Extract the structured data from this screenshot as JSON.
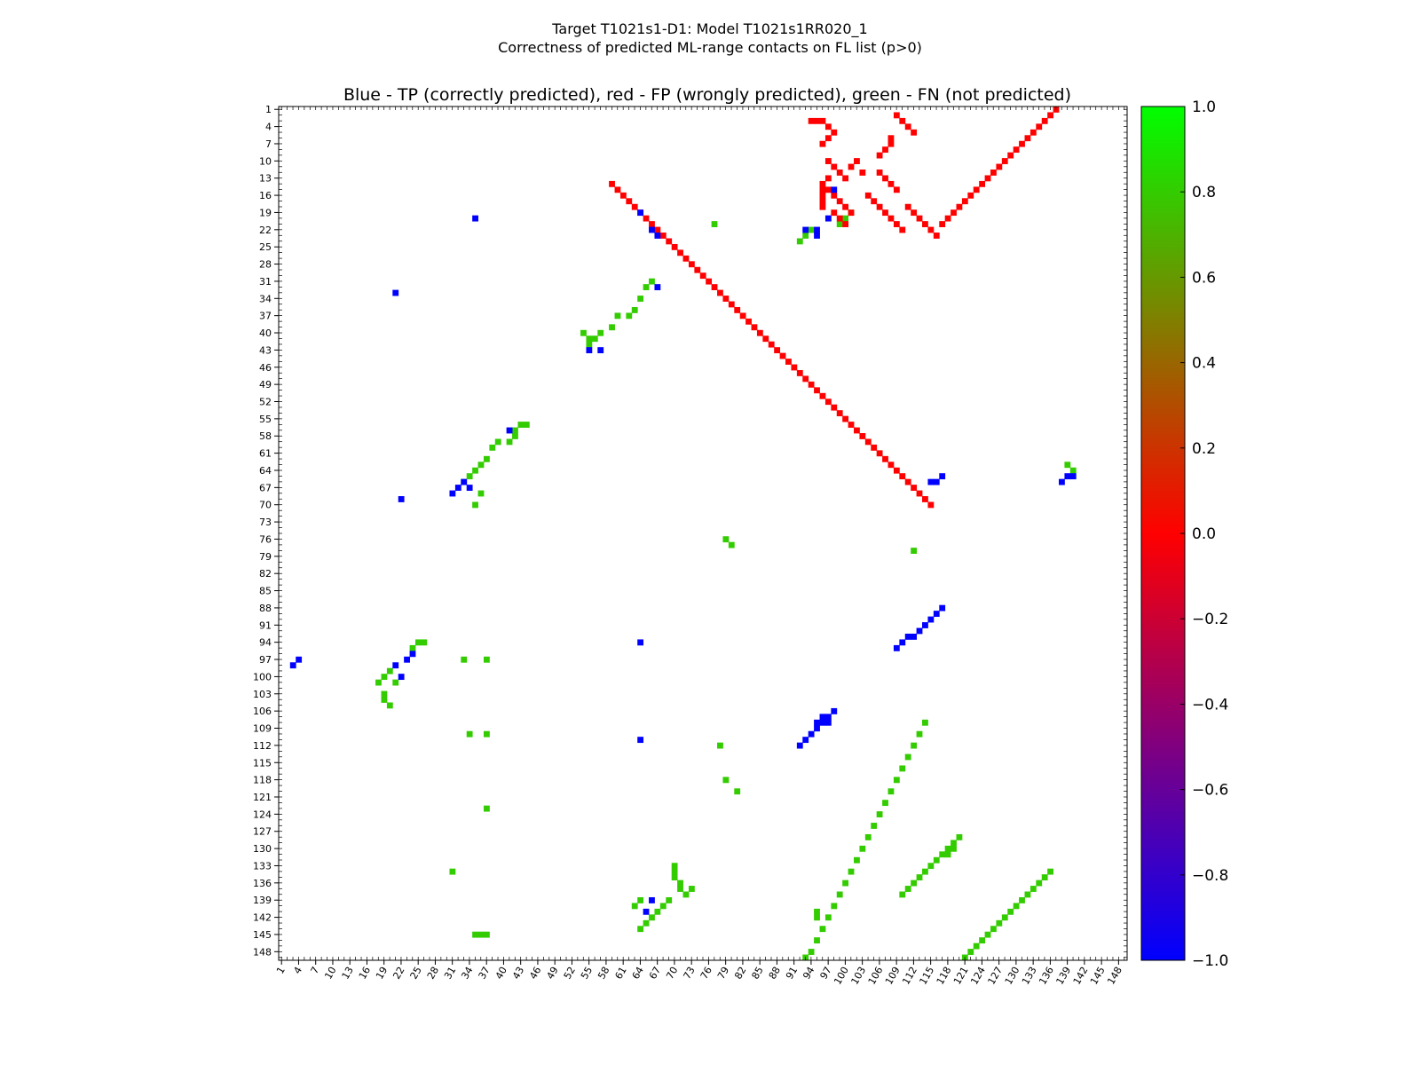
{
  "chart_data": {
    "type": "heatmap",
    "title": "Target T1021s1-D1: Model T1021s1RR020_1",
    "subtitle": "Correctness of predicted ML-range contacts on FL list (p>0)",
    "plot_title": "Blue - TP (correctly predicted), red - FP (wrongly predicted), green - FN (not predicted)",
    "xlabel": "",
    "ylabel": "",
    "residue_range": [
      1,
      149
    ],
    "ticks": [
      "1",
      "4",
      "7",
      "10",
      "13",
      "16",
      "19",
      "22",
      "25",
      "28",
      "31",
      "34",
      "37",
      "40",
      "43",
      "46",
      "49",
      "52",
      "55",
      "58",
      "61",
      "64",
      "67",
      "70",
      "73",
      "76",
      "79",
      "82",
      "85",
      "88",
      "91",
      "94",
      "97",
      "100",
      "103",
      "106",
      "109",
      "112",
      "115",
      "118",
      "121",
      "124",
      "127",
      "130",
      "133",
      "136",
      "139",
      "142",
      "145",
      "148"
    ],
    "grid": false,
    "colorbar": {
      "range": [
        -1.0,
        1.0
      ],
      "ticks": [
        "1.0",
        "0.8",
        "0.6",
        "0.4",
        "0.2",
        "0.0",
        "−0.2",
        "−0.4",
        "−0.6",
        "−0.8",
        "−1.0"
      ],
      "colors": [
        "#0000ff",
        "#ff0000",
        "#00ff00"
      ]
    },
    "colors": {
      "TP": "#0000ff",
      "FP": "#ff0000",
      "FN": "#33cc00"
    },
    "cells": {
      "TP": [
        [
          3,
          98
        ],
        [
          4,
          97
        ],
        [
          21,
          33
        ],
        [
          21,
          98
        ],
        [
          22,
          100
        ],
        [
          23,
          97
        ],
        [
          24,
          96
        ],
        [
          35,
          20
        ],
        [
          41,
          57
        ],
        [
          55,
          43
        ],
        [
          57,
          43
        ],
        [
          64,
          19
        ],
        [
          64,
          94
        ],
        [
          64,
          111
        ],
        [
          65,
          141
        ],
        [
          66,
          22
        ],
        [
          66,
          139
        ],
        [
          67,
          32
        ],
        [
          67,
          23
        ],
        [
          98,
          15
        ],
        [
          97,
          20
        ],
        [
          95,
          22
        ],
        [
          93,
          22
        ],
        [
          95,
          23
        ],
        [
          115,
          66
        ],
        [
          116,
          66
        ],
        [
          117,
          65
        ],
        [
          138,
          66
        ],
        [
          139,
          65
        ],
        [
          140,
          65
        ],
        [
          33,
          66
        ],
        [
          32,
          67
        ],
        [
          31,
          68
        ],
        [
          34,
          67
        ],
        [
          22,
          69
        ],
        [
          92,
          112
        ],
        [
          93,
          111
        ],
        [
          94,
          110
        ],
        [
          95,
          109
        ],
        [
          96,
          108
        ],
        [
          97,
          107
        ],
        [
          98,
          106
        ],
        [
          95,
          108
        ],
        [
          96,
          107
        ],
        [
          97,
          108
        ],
        [
          109,
          95
        ],
        [
          110,
          94
        ],
        [
          111,
          93
        ],
        [
          112,
          93
        ],
        [
          113,
          92
        ],
        [
          114,
          91
        ],
        [
          115,
          90
        ],
        [
          116,
          89
        ],
        [
          117,
          88
        ]
      ],
      "FN": [
        [
          18,
          101
        ],
        [
          19,
          100
        ],
        [
          20,
          99
        ],
        [
          21,
          101
        ],
        [
          24,
          95
        ],
        [
          25,
          94
        ],
        [
          26,
          94
        ],
        [
          33,
          97
        ],
        [
          37,
          97
        ],
        [
          19,
          103
        ],
        [
          19,
          104
        ],
        [
          20,
          105
        ],
        [
          34,
          110
        ],
        [
          37,
          110
        ],
        [
          37,
          123
        ],
        [
          77,
          21
        ],
        [
          99,
          21
        ],
        [
          100,
          20
        ],
        [
          101,
          19
        ],
        [
          94,
          22
        ],
        [
          93,
          23
        ],
        [
          92,
          24
        ],
        [
          66,
          31
        ],
        [
          65,
          32
        ],
        [
          64,
          34
        ],
        [
          63,
          36
        ],
        [
          62,
          37
        ],
        [
          60,
          37
        ],
        [
          59,
          39
        ],
        [
          57,
          40
        ],
        [
          56,
          41
        ],
        [
          55,
          42
        ],
        [
          55,
          41
        ],
        [
          54,
          40
        ],
        [
          39,
          59
        ],
        [
          38,
          60
        ],
        [
          37,
          62
        ],
        [
          36,
          63
        ],
        [
          35,
          64
        ],
        [
          34,
          65
        ],
        [
          33,
          66
        ],
        [
          36,
          68
        ],
        [
          35,
          70
        ],
        [
          42,
          57
        ],
        [
          43,
          56
        ],
        [
          44,
          56
        ],
        [
          42,
          58
        ],
        [
          41,
          59
        ],
        [
          114,
          108
        ],
        [
          113,
          110
        ],
        [
          112,
          112
        ],
        [
          111,
          114
        ],
        [
          110,
          116
        ],
        [
          109,
          118
        ],
        [
          108,
          120
        ],
        [
          107,
          122
        ],
        [
          106,
          124
        ],
        [
          105,
          126
        ],
        [
          104,
          128
        ],
        [
          103,
          130
        ],
        [
          102,
          132
        ],
        [
          101,
          134
        ],
        [
          100,
          136
        ],
        [
          99,
          138
        ],
        [
          98,
          140
        ],
        [
          97,
          142
        ],
        [
          96,
          144
        ],
        [
          95,
          146
        ],
        [
          94,
          148
        ],
        [
          93,
          149
        ],
        [
          121,
          149
        ],
        [
          122,
          148
        ],
        [
          123,
          147
        ],
        [
          124,
          146
        ],
        [
          125,
          145
        ],
        [
          126,
          144
        ],
        [
          127,
          143
        ],
        [
          128,
          142
        ],
        [
          129,
          141
        ],
        [
          130,
          140
        ],
        [
          131,
          139
        ],
        [
          132,
          138
        ],
        [
          133,
          137
        ],
        [
          134,
          136
        ],
        [
          135,
          135
        ],
        [
          136,
          134
        ],
        [
          110,
          138
        ],
        [
          111,
          137
        ],
        [
          112,
          136
        ],
        [
          113,
          135
        ],
        [
          114,
          134
        ],
        [
          115,
          133
        ],
        [
          116,
          132
        ],
        [
          117,
          131
        ],
        [
          118,
          130
        ],
        [
          119,
          129
        ],
        [
          120,
          128
        ],
        [
          118,
          131
        ],
        [
          119,
          130
        ],
        [
          70,
          133
        ],
        [
          70,
          134
        ],
        [
          70,
          135
        ],
        [
          71,
          136
        ],
        [
          71,
          137
        ],
        [
          72,
          138
        ],
        [
          73,
          137
        ],
        [
          69,
          139
        ],
        [
          68,
          140
        ],
        [
          67,
          141
        ],
        [
          66,
          142
        ],
        [
          65,
          143
        ],
        [
          64,
          144
        ],
        [
          95,
          141
        ],
        [
          95,
          142
        ],
        [
          35,
          145
        ],
        [
          36,
          145
        ],
        [
          37,
          145
        ],
        [
          112,
          78
        ],
        [
          78,
          112
        ],
        [
          79,
          118
        ],
        [
          81,
          120
        ],
        [
          31,
          134
        ],
        [
          64,
          139
        ],
        [
          63,
          140
        ],
        [
          140,
          64
        ],
        [
          139,
          63
        ],
        [
          79,
          76
        ],
        [
          80,
          77
        ]
      ],
      "FP": [
        [
          94,
          3
        ],
        [
          95,
          3
        ],
        [
          96,
          3
        ],
        [
          97,
          4
        ],
        [
          98,
          5
        ],
        [
          97,
          6
        ],
        [
          96,
          7
        ],
        [
          109,
          2
        ],
        [
          110,
          3
        ],
        [
          111,
          4
        ],
        [
          112,
          5
        ],
        [
          108,
          6
        ],
        [
          108,
          7
        ],
        [
          107,
          8
        ],
        [
          106,
          9
        ],
        [
          97,
          10
        ],
        [
          98,
          11
        ],
        [
          99,
          12
        ],
        [
          100,
          13
        ],
        [
          101,
          11
        ],
        [
          102,
          10
        ],
        [
          103,
          12
        ],
        [
          97,
          13
        ],
        [
          97,
          15
        ],
        [
          98,
          16
        ],
        [
          99,
          17
        ],
        [
          100,
          18
        ],
        [
          101,
          19
        ],
        [
          98,
          19
        ],
        [
          99,
          20
        ],
        [
          100,
          21
        ],
        [
          96,
          14
        ],
        [
          96,
          15
        ],
        [
          96,
          16
        ],
        [
          96,
          17
        ],
        [
          96,
          18
        ],
        [
          106,
          12
        ],
        [
          107,
          13
        ],
        [
          108,
          14
        ],
        [
          109,
          15
        ],
        [
          104,
          16
        ],
        [
          105,
          17
        ],
        [
          106,
          18
        ],
        [
          107,
          19
        ],
        [
          108,
          20
        ],
        [
          109,
          21
        ],
        [
          110,
          22
        ],
        [
          111,
          18
        ],
        [
          112,
          19
        ],
        [
          113,
          20
        ],
        [
          114,
          21
        ],
        [
          115,
          22
        ],
        [
          116,
          23
        ],
        [
          117,
          21
        ],
        [
          118,
          20
        ],
        [
          119,
          19
        ],
        [
          120,
          18
        ],
        [
          121,
          17
        ],
        [
          122,
          16
        ],
        [
          123,
          15
        ],
        [
          124,
          14
        ],
        [
          125,
          13
        ],
        [
          126,
          12
        ],
        [
          127,
          11
        ],
        [
          128,
          10
        ],
        [
          129,
          9
        ],
        [
          130,
          8
        ],
        [
          131,
          7
        ],
        [
          132,
          6
        ],
        [
          133,
          5
        ],
        [
          134,
          4
        ],
        [
          135,
          3
        ],
        [
          136,
          2
        ],
        [
          137,
          1
        ],
        [
          59,
          14
        ],
        [
          60,
          15
        ],
        [
          61,
          16
        ],
        [
          62,
          17
        ],
        [
          63,
          18
        ],
        [
          64,
          19
        ],
        [
          65,
          20
        ],
        [
          66,
          21
        ],
        [
          67,
          22
        ],
        [
          68,
          23
        ],
        [
          69,
          24
        ],
        [
          70,
          25
        ],
        [
          71,
          26
        ],
        [
          72,
          27
        ],
        [
          73,
          28
        ],
        [
          74,
          29
        ],
        [
          75,
          30
        ],
        [
          76,
          31
        ],
        [
          77,
          32
        ],
        [
          78,
          33
        ],
        [
          79,
          34
        ],
        [
          80,
          35
        ],
        [
          81,
          36
        ],
        [
          82,
          37
        ],
        [
          83,
          38
        ],
        [
          84,
          39
        ],
        [
          85,
          40
        ],
        [
          86,
          41
        ],
        [
          87,
          42
        ],
        [
          88,
          43
        ],
        [
          89,
          44
        ],
        [
          90,
          45
        ],
        [
          91,
          46
        ],
        [
          92,
          47
        ],
        [
          93,
          48
        ],
        [
          94,
          49
        ],
        [
          95,
          50
        ],
        [
          96,
          51
        ],
        [
          97,
          52
        ],
        [
          98,
          53
        ],
        [
          99,
          54
        ],
        [
          100,
          55
        ],
        [
          101,
          56
        ],
        [
          102,
          57
        ],
        [
          103,
          58
        ],
        [
          104,
          59
        ],
        [
          105,
          60
        ],
        [
          106,
          61
        ],
        [
          107,
          62
        ],
        [
          108,
          63
        ],
        [
          109,
          64
        ],
        [
          110,
          65
        ],
        [
          111,
          66
        ],
        [
          112,
          67
        ],
        [
          113,
          68
        ],
        [
          114,
          69
        ],
        [
          115,
          70
        ]
      ]
    }
  }
}
